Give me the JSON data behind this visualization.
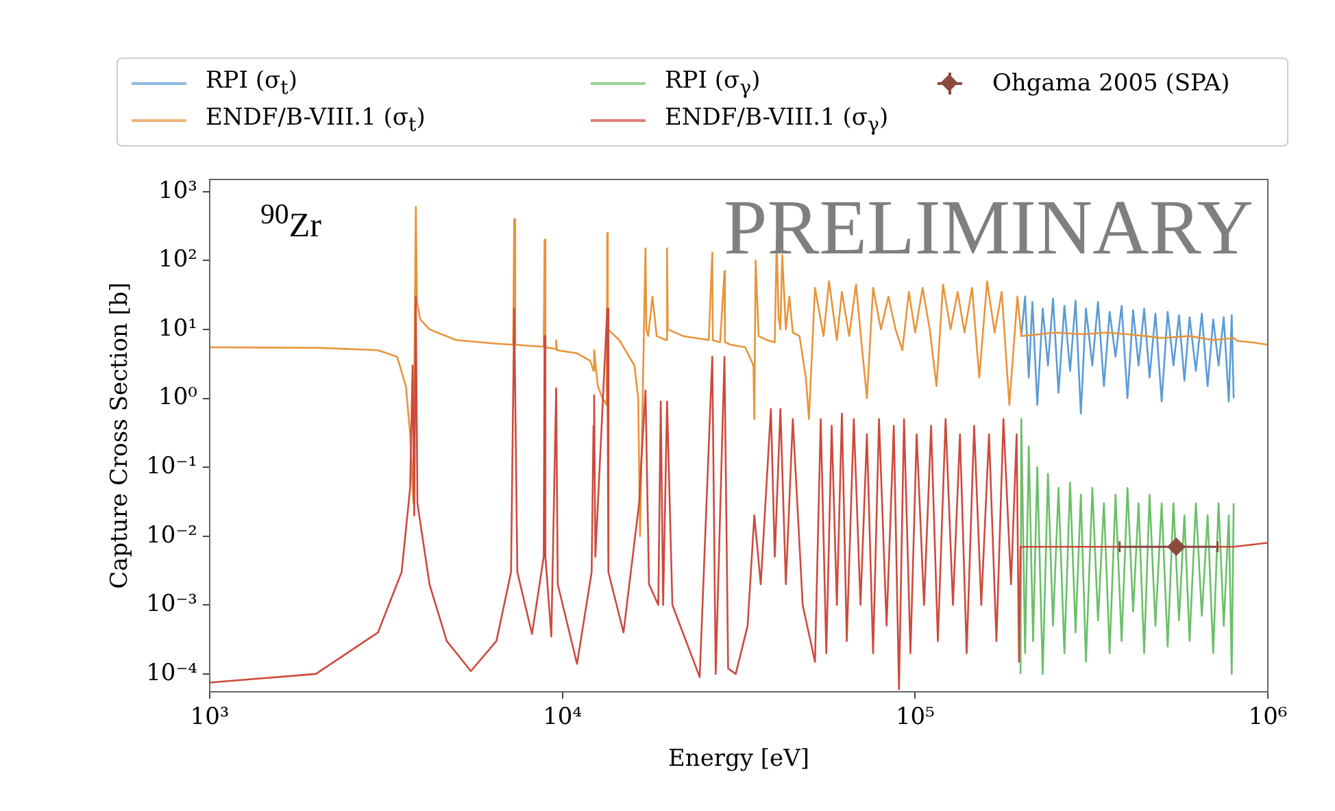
{
  "chart_data": {
    "type": "line",
    "xlabel": "Energy [eV]",
    "ylabel": "Capture Cross Section [b]",
    "log": "xy",
    "xlim": [
      1000,
      1000000
    ],
    "ylim": [
      5.5e-05,
      1500
    ],
    "xticks": [
      {
        "value": 1000,
        "label": "10³"
      },
      {
        "value": 10000,
        "label": "10⁴"
      },
      {
        "value": 100000,
        "label": "10⁵"
      },
      {
        "value": 1000000,
        "label": "10⁶"
      }
    ],
    "yticks": [
      {
        "value": 0.0001,
        "label": "10⁻⁴"
      },
      {
        "value": 0.001,
        "label": "10⁻³"
      },
      {
        "value": 0.01,
        "label": "10⁻²"
      },
      {
        "value": 0.1,
        "label": "10⁻¹"
      },
      {
        "value": 1,
        "label": "10⁰"
      },
      {
        "value": 10,
        "label": "10¹"
      },
      {
        "value": 100,
        "label": "10²"
      },
      {
        "value": 1000,
        "label": "10³"
      }
    ],
    "grid": false,
    "legend": "top",
    "marker": "none",
    "line_style": "solid",
    "annotations": [
      "$^{90}$Zr",
      "PRELIMINARY"
    ],
    "series": [
      {
        "name": "RPI (σ$_{t}$)",
        "color": "#5b9bd5",
        "x": [
          200000,
          205000,
          210000,
          215000,
          222000,
          230000,
          238000,
          246000,
          255000,
          265000,
          275000,
          285000,
          295000,
          305000,
          318000,
          330000,
          343000,
          356000,
          370000,
          385000,
          400000,
          415000,
          430000,
          446000,
          462000,
          480000,
          500000,
          520000,
          540000,
          560000,
          580000,
          600000,
          625000,
          650000,
          675000,
          700000,
          725000,
          750000,
          775000,
          790000,
          800000
        ],
        "values": [
          8,
          30,
          2,
          25,
          0.8,
          20,
          3,
          28,
          1.2,
          22,
          2.5,
          26,
          0.6,
          20,
          3,
          25,
          1.5,
          18,
          4,
          22,
          1,
          19,
          3,
          20,
          2,
          17,
          0.9,
          18,
          3,
          16,
          1.8,
          15,
          2.5,
          17,
          1.5,
          14,
          3,
          15,
          0.9,
          16,
          1
        ]
      },
      {
        "name": "ENDF/B-VIII.1 (σ$_{t}$)",
        "color": "#e8943a",
        "x": [
          1000,
          2000,
          3000,
          3400,
          3600,
          3700,
          3780,
          3800,
          3840,
          3870,
          3950,
          4200,
          5000,
          6500,
          7250,
          7300,
          7350,
          8000,
          8850,
          8900,
          8950,
          9550,
          9600,
          9650,
          11000,
          12000,
          12250,
          12300,
          12600,
          13000,
          13350,
          13400,
          13450,
          14500,
          16000,
          16400,
          16600,
          17200,
          17300,
          17500,
          18000,
          18500,
          19700,
          19800,
          19900,
          22000,
          26000,
          26600,
          26700,
          28000,
          28800,
          28900,
          30000,
          33000,
          34800,
          35000,
          35300,
          36000,
          38000,
          40000,
          40500,
          41000,
          41500,
          42000,
          43000,
          44000,
          45000,
          47000,
          49000,
          50000,
          52000,
          55000,
          57000,
          60000,
          62000,
          65000,
          68000,
          70000,
          73000,
          76000,
          80000,
          84000,
          88000,
          92000,
          96000,
          100000,
          105000,
          110000,
          115000,
          120000,
          126000,
          132000,
          138000,
          145000,
          152000,
          160000,
          168000,
          176000,
          185000,
          195000,
          200000,
          250000,
          300000,
          350000,
          400000,
          450000,
          500000,
          600000,
          700000,
          800000,
          820000,
          900000,
          1000000
        ],
        "values": [
          5.5,
          5.4,
          5.0,
          4.0,
          1.5,
          0.3,
          0.03,
          1.5,
          600,
          25,
          14,
          10,
          7,
          6.2,
          6,
          400,
          6,
          5.8,
          5.6,
          200,
          5.5,
          5.2,
          7,
          5,
          4.5,
          3.5,
          2.5,
          5,
          1.5,
          1.0,
          0.8,
          250,
          10,
          7,
          3,
          1,
          0.01,
          150,
          10,
          8,
          30,
          8,
          7,
          150,
          10,
          8,
          7,
          130,
          7,
          6.5,
          70,
          6.5,
          6,
          5.5,
          3,
          0.5,
          100,
          8,
          7,
          6.5,
          200,
          15,
          10,
          120,
          10,
          30,
          9,
          8,
          2,
          0.5,
          40,
          8,
          50,
          7,
          35,
          8,
          45,
          9,
          1,
          40,
          10,
          30,
          10,
          5,
          35,
          9,
          40,
          10,
          1.5,
          45,
          10,
          35,
          9,
          40,
          2,
          50,
          9,
          35,
          0.8,
          30,
          8,
          9,
          8.5,
          9,
          8.5,
          8,
          7.5,
          8,
          7,
          7.5,
          6.8,
          6.5,
          6
        ]
      },
      {
        "name": "RPI (σ$_{γ}$)",
        "color": "#6abf69",
        "x": [
          199000,
          200000,
          205000,
          210000,
          216000,
          222000,
          230000,
          238000,
          246000,
          255000,
          265000,
          275000,
          285000,
          295000,
          305000,
          318000,
          330000,
          343000,
          356000,
          370000,
          385000,
          400000,
          415000,
          430000,
          446000,
          462000,
          480000,
          500000,
          520000,
          540000,
          560000,
          580000,
          600000,
          625000,
          650000,
          675000,
          700000,
          725000,
          750000,
          775000,
          790000,
          800000
        ],
        "values": [
          0.0001,
          0.5,
          0.0002,
          0.2,
          0.0003,
          0.1,
          0.0001,
          0.08,
          0.0005,
          0.05,
          0.0002,
          0.06,
          0.0004,
          0.04,
          0.00015,
          0.05,
          0.0006,
          0.03,
          0.0002,
          0.04,
          0.0003,
          0.05,
          0.0008,
          0.03,
          0.0002,
          0.04,
          0.0005,
          0.03,
          0.00025,
          0.03,
          0.0006,
          0.02,
          0.0003,
          0.03,
          0.0007,
          0.02,
          0.0002,
          0.03,
          0.0005,
          0.02,
          0.0001,
          0.03
        ]
      },
      {
        "name": "ENDF/B-VIII.1 (σ$_{γ}$)",
        "color": "#cd4a3d",
        "x": [
          1000,
          2000,
          3000,
          3500,
          3700,
          3760,
          3800,
          3840,
          3880,
          4200,
          4700,
          5500,
          6500,
          7150,
          7300,
          7450,
          8200,
          8850,
          8900,
          8950,
          9300,
          9600,
          9700,
          11000,
          12100,
          12250,
          12300,
          12400,
          13400,
          13500,
          14900,
          16500,
          16700,
          17200,
          17600,
          18700,
          19000,
          19300,
          19800,
          20500,
          24500,
          26600,
          27200,
          28800,
          29500,
          31000,
          33500,
          35000,
          36500,
          39000,
          40000,
          41500,
          43000,
          45000,
          48000,
          52000,
          54000,
          56000,
          58000,
          60000,
          62000,
          64000,
          67000,
          70000,
          73000,
          76000,
          79000,
          83000,
          87000,
          90000,
          93000,
          97000,
          101000,
          106000,
          111000,
          116000,
          122000,
          128000,
          134000,
          140000,
          147000,
          154000,
          162000,
          170000,
          178000,
          187000,
          194000,
          197000,
          199000,
          300000,
          500000,
          800000,
          1000000
        ],
        "values": [
          7.5e-05,
          0.0001,
          0.0004,
          0.003,
          0.05,
          3,
          0.02,
          30,
          0.03,
          0.002,
          0.0003,
          0.00011,
          0.0003,
          0.003,
          20,
          0.003,
          0.00038,
          0.005,
          8,
          0.005,
          0.00035,
          1.4,
          0.002,
          0.00014,
          0.003,
          0.4,
          1.1,
          0.005,
          20,
          0.003,
          0.0004,
          0.03,
          0.1,
          1.3,
          0.002,
          0.001,
          0.9,
          0.001,
          0.9,
          0.001,
          9e-05,
          4,
          0.0001,
          4,
          0.00012,
          0.0001,
          0.0005,
          0.02,
          0.002,
          0.7,
          0.005,
          0.7,
          0.002,
          0.5,
          0.001,
          0.00015,
          0.5,
          0.0002,
          0.4,
          0.001,
          0.6,
          0.0003,
          0.5,
          0.001,
          0.3,
          0.0002,
          0.5,
          0.0005,
          0.4,
          6e-05,
          0.5,
          0.0002,
          0.3,
          0.001,
          0.4,
          0.0003,
          0.5,
          0.001,
          0.3,
          0.0002,
          0.4,
          0.001,
          0.3,
          0.0003,
          0.5,
          0.002,
          0.3,
          0.00015,
          0.007,
          0.007,
          0.007,
          0.007,
          0.008
        ]
      },
      {
        "name": "Ohgama 2005 (SPA)",
        "type": "scatter",
        "marker": "diamond",
        "color": "#8c4a3f",
        "x": [
          550000
        ],
        "values": [
          0.007
        ],
        "xerrors": [
          [
            380000,
            720000
          ]
        ]
      }
    ]
  }
}
